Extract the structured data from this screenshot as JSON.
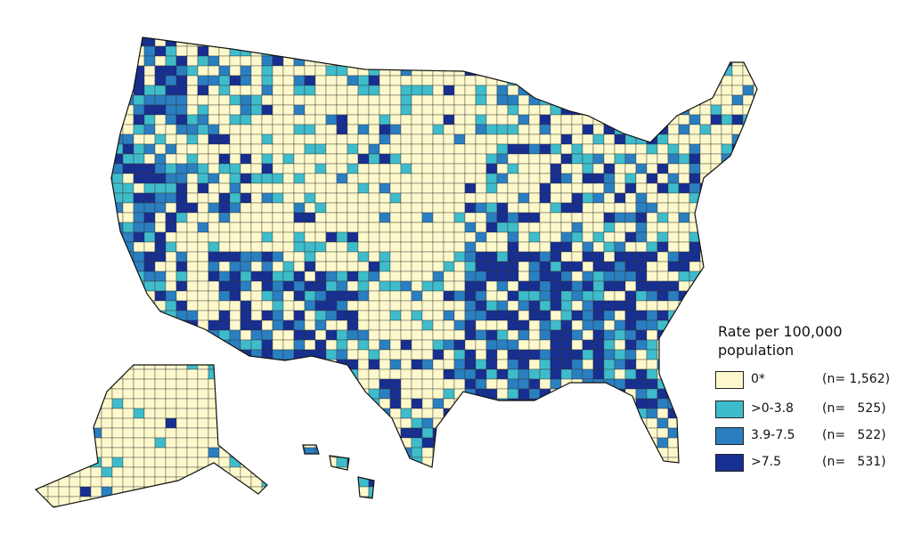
{
  "legend": {
    "title": "Rate per 100,000 population",
    "items": [
      {
        "label": "0*",
        "count": "(n= 1,562)",
        "color": "#fdf9cc"
      },
      {
        "label": ">0-3.8",
        "count": "(n=   525)",
        "color": "#3fbccb"
      },
      {
        "label": "3.9-7.5",
        "count": "(n=   522)",
        "color": "#2a7fc1"
      },
      {
        "label": ">7.5",
        "count": "(n=   531)",
        "color": "#172f91"
      }
    ]
  }
}
